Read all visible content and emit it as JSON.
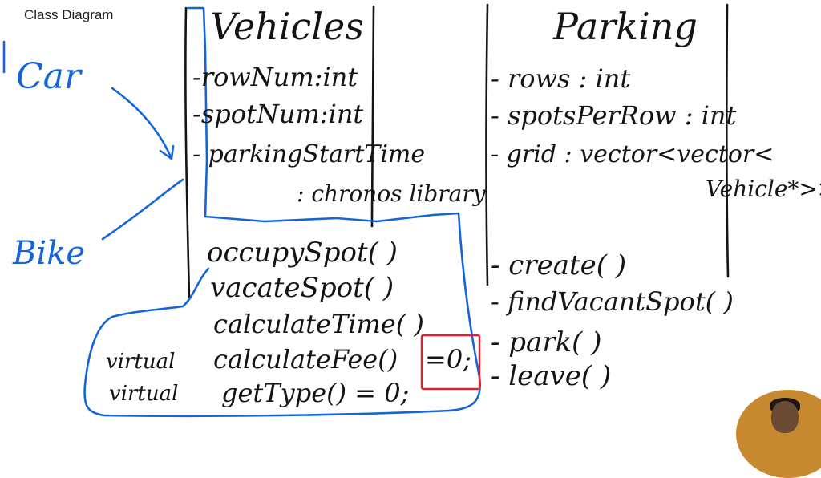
{
  "header": {
    "title": "Class Diagram"
  },
  "vehicles": {
    "name": "Vehicles",
    "attributes": [
      "-rowNum:int",
      "-spotNum:int",
      "- parkingStartTime",
      ": chronos library"
    ],
    "methods": [
      "occupySpot(   )",
      "vacateSpot(   )",
      "calculateTime(  )",
      "calculateFee()",
      "=0;",
      "getType() = 0;"
    ],
    "virtual_keyword": "virtual"
  },
  "parking": {
    "name": "Parking",
    "attributes": [
      "- rows : int",
      "- spotsPerRow : int",
      "- grid : vector<vector<",
      "Vehicle*>>"
    ],
    "methods": [
      "- create(  )",
      "- findVacantSpot(  )",
      "- park(  )",
      "- leave(  )"
    ]
  },
  "subclasses": [
    {
      "name": "Car"
    },
    {
      "name": "Bike"
    }
  ],
  "colors": {
    "ink": "#141414",
    "subclass": "#1565d8",
    "highlight": "#e0202c",
    "background": "#ffffff"
  }
}
